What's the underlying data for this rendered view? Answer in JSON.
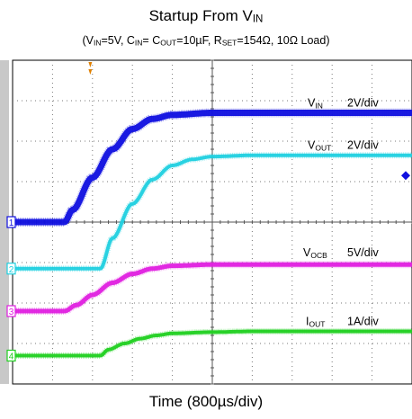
{
  "title": {
    "main": "Startup From V",
    "main_sub": "IN"
  },
  "subtitle": {
    "p1": "(V",
    "s1": "IN",
    "p2": "=5V, C",
    "s2": "IN",
    "p3": "= C",
    "s3": "OUT",
    "p4": "=10µF, R",
    "s4": "SET",
    "p5": "=154Ω, 10Ω Load)"
  },
  "xlabel": "Time (800µs/div)",
  "colors": {
    "ch1": "#1010e0",
    "ch2": "#20d0e0",
    "ch3": "#e020e0",
    "ch4": "#20d020",
    "grid": "#7a7a7a",
    "trigger": "#e08000"
  },
  "chart_data": {
    "type": "line",
    "title": "Startup From VIN",
    "xlabel": "Time (800µs/div)",
    "x_divisions": 10,
    "y_divisions": 8,
    "x_unit": "div",
    "y_unit": "div",
    "series": [
      {
        "name": "VIN",
        "channel": "1",
        "scale": "2V/div",
        "baseline_div": 0.0,
        "final_div": 2.7,
        "x": [
          0,
          1.3,
          1.5,
          2.0,
          2.5,
          3.0,
          3.5,
          4.0,
          5.0,
          10.0
        ],
        "y": [
          0.0,
          0.0,
          0.3,
          1.1,
          1.8,
          2.3,
          2.55,
          2.65,
          2.7,
          2.7
        ]
      },
      {
        "name": "VOUT",
        "channel": "2",
        "scale": "2V/div",
        "baseline_div": -1.15,
        "final_div": 1.65,
        "x": [
          0,
          2.2,
          2.5,
          3.0,
          3.5,
          4.0,
          4.5,
          5.0,
          6.0,
          10.0
        ],
        "y": [
          -1.15,
          -1.15,
          -0.4,
          0.45,
          1.05,
          1.4,
          1.55,
          1.62,
          1.65,
          1.65
        ]
      },
      {
        "name": "VOCB",
        "channel": "3",
        "scale": "5V/div",
        "baseline_div": -2.2,
        "final_div": -1.05,
        "x": [
          0,
          1.3,
          1.6,
          2.0,
          2.5,
          3.0,
          3.5,
          4.0,
          5.0,
          10.0
        ],
        "y": [
          -2.2,
          -2.2,
          -2.05,
          -1.8,
          -1.5,
          -1.28,
          -1.15,
          -1.08,
          -1.05,
          -1.05
        ]
      },
      {
        "name": "IOUT",
        "channel": "4",
        "scale": "1A/div",
        "baseline_div": -3.3,
        "final_div": -2.7,
        "x": [
          0,
          2.2,
          2.4,
          2.8,
          3.2,
          3.6,
          4.0,
          5.0,
          6.0,
          10.0
        ],
        "y": [
          -3.3,
          -3.3,
          -3.15,
          -3.0,
          -2.88,
          -2.8,
          -2.75,
          -2.72,
          -2.7,
          -2.7
        ]
      }
    ],
    "labels": [
      {
        "name_p": "V",
        "name_sub": "IN",
        "scale": "2V/div"
      },
      {
        "name_p": "V",
        "name_sub": "OUT",
        "scale": "2V/div"
      },
      {
        "name_p": "V",
        "name_sub": "OCB",
        "scale": "5V/div"
      },
      {
        "name_p": "I",
        "name_sub": "OUT",
        "scale": "1A/div"
      }
    ],
    "grid": true
  }
}
